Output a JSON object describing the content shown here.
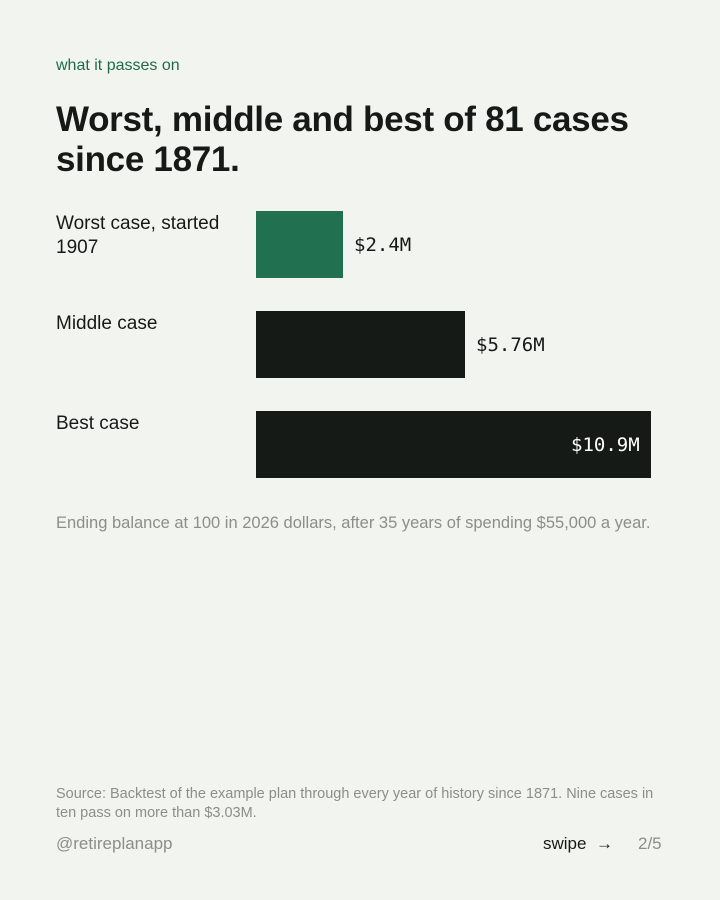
{
  "eyebrow": "what it passes on",
  "title": "Worst, middle and best of 81 cases since 1871.",
  "caption": "Ending balance at 100 in 2026 dollars, after 35 years of spending $55,000 a year.",
  "source": "Source: Backtest of the example plan through every year of history since 1871. Nine cases in ten pass on more than $3.03M.",
  "footer": {
    "handle": "@retireplanapp",
    "swipe_label": "swipe",
    "arrow_icon": "→",
    "page_indicator": "2/5"
  },
  "colors": {
    "accent": "#217050",
    "bar": "#161a17",
    "background": "#f2f4ef"
  },
  "chart_data": {
    "type": "bar",
    "orientation": "horizontal",
    "categories": [
      "Worst case, started 1907",
      "Middle case",
      "Best case"
    ],
    "values": [
      2.4,
      5.76,
      10.9
    ],
    "value_labels": [
      "$2.4M",
      "$5.76M",
      "$10.9M"
    ],
    "unit": "$M",
    "highlight_index": 0,
    "xlim": [
      0,
      10.9
    ],
    "grid": false,
    "legend": "none"
  }
}
